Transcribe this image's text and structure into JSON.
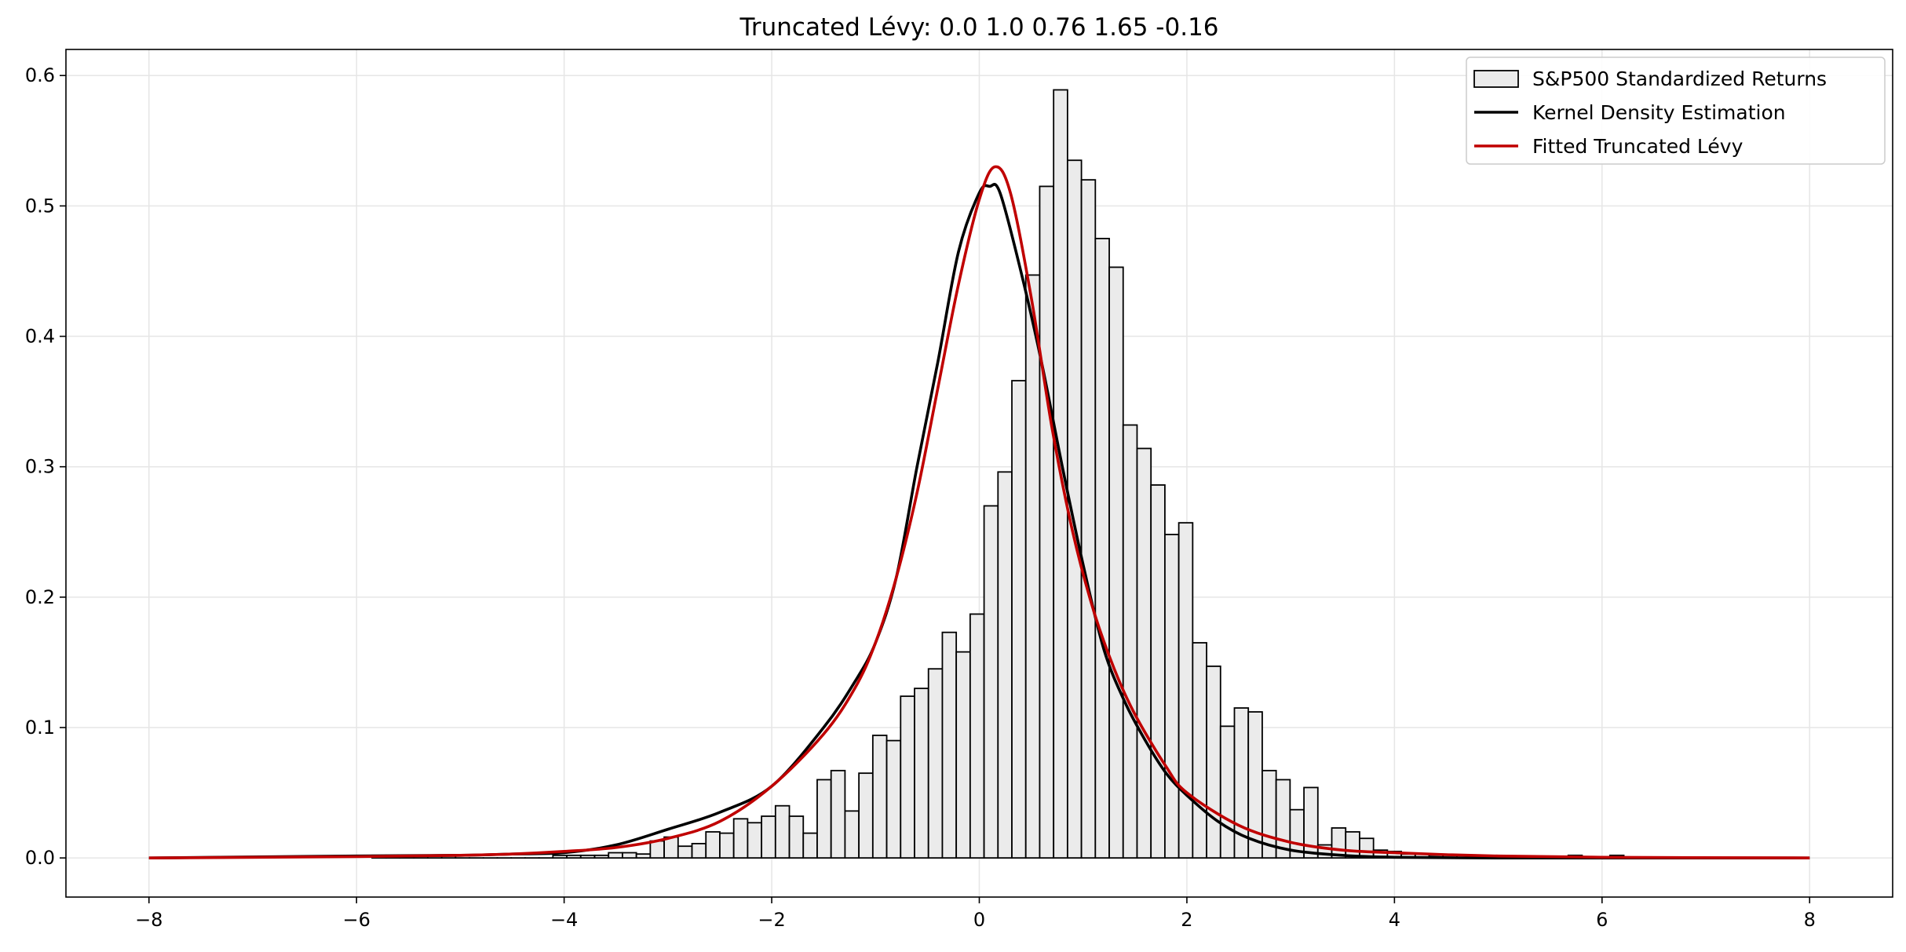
{
  "chart_data": {
    "type": "bar",
    "title": "Truncated Lévy: 0.0 1.0 0.76 1.65 -0.16",
    "xlabel": "",
    "ylabel": "",
    "xlim": [
      -8.8,
      8.8
    ],
    "ylim": [
      -0.03,
      0.62
    ],
    "grid": true,
    "legend_position": "top-right",
    "x_ticks": [
      -8,
      -6,
      -4,
      -2,
      0,
      2,
      4,
      6,
      8
    ],
    "x_tick_labels": [
      "−8",
      "−6",
      "−4",
      "−2",
      "0",
      "2",
      "4",
      "6",
      "8"
    ],
    "y_ticks": [
      0.0,
      0.1,
      0.2,
      0.3,
      0.4,
      0.5,
      0.6
    ],
    "y_tick_labels": [
      "0.0",
      "0.1",
      "0.2",
      "0.3",
      "0.4",
      "0.5",
      "0.6"
    ],
    "legend": [
      {
        "label": "S&P500 Standardized Returns",
        "kind": "patch",
        "color": "#ebebeb",
        "edge": "#000000"
      },
      {
        "label": "Kernel Density Estimation",
        "kind": "line",
        "color": "#000000"
      },
      {
        "label": "Fitted Truncated Lévy",
        "kind": "line",
        "color": "#c00000"
      }
    ],
    "histogram": {
      "name": "S&P500 Standardized Returns",
      "fill": "#ebebeb",
      "edge": "#000000",
      "bin_edges_start": -5.85,
      "bin_width": 0.134,
      "values": [
        0.002,
        0.002,
        0.002,
        0.002,
        0.0,
        0.002,
        0.0,
        0.0,
        0.0,
        0.0,
        0.0,
        0.0,
        0.0,
        0.002,
        0.002,
        0.002,
        0.002,
        0.004,
        0.004,
        0.003,
        0.013,
        0.016,
        0.009,
        0.011,
        0.02,
        0.019,
        0.03,
        0.027,
        0.032,
        0.04,
        0.032,
        0.019,
        0.06,
        0.067,
        0.036,
        0.065,
        0.094,
        0.09,
        0.124,
        0.13,
        0.145,
        0.173,
        0.158,
        0.187,
        0.27,
        0.296,
        0.366,
        0.447,
        0.515,
        0.589,
        0.535,
        0.52,
        0.475,
        0.453,
        0.332,
        0.314,
        0.286,
        0.248,
        0.257,
        0.165,
        0.147,
        0.101,
        0.115,
        0.112,
        0.067,
        0.06,
        0.037,
        0.054,
        0.01,
        0.023,
        0.02,
        0.015,
        0.006,
        0.005,
        0.003,
        0.003,
        0.002,
        0.002,
        0.0,
        0.0,
        0.0,
        0.0,
        0.0,
        0.0,
        0.0,
        0.0,
        0.002,
        0.0,
        0.0,
        0.002
      ]
    },
    "series": [
      {
        "name": "Kernel Density Estimation",
        "color": "#000000",
        "x": [
          -8,
          -6,
          -5,
          -4.5,
          -4,
          -3.5,
          -3.0,
          -2.5,
          -2.0,
          -1.5,
          -1.2,
          -1.0,
          -0.8,
          -0.6,
          -0.4,
          -0.2,
          0.0,
          0.1,
          0.2,
          0.4,
          0.6,
          0.8,
          1.0,
          1.2,
          1.4,
          1.6,
          1.8,
          2.0,
          2.3,
          2.6,
          3.0,
          3.5,
          4.0,
          5.0,
          6.0,
          8.0
        ],
        "y": [
          0.0,
          0.0015,
          0.002,
          0.003,
          0.004,
          0.01,
          0.022,
          0.035,
          0.055,
          0.1,
          0.135,
          0.165,
          0.215,
          0.3,
          0.38,
          0.465,
          0.51,
          0.515,
          0.51,
          0.45,
          0.38,
          0.3,
          0.225,
          0.16,
          0.12,
          0.09,
          0.065,
          0.048,
          0.028,
          0.015,
          0.006,
          0.002,
          0.0005,
          0.0,
          0.0,
          0.0
        ]
      },
      {
        "name": "Fitted Truncated Lévy",
        "color": "#c00000",
        "x": [
          -8,
          -6,
          -5,
          -4.5,
          -4,
          -3.5,
          -3.0,
          -2.5,
          -2.0,
          -1.5,
          -1.2,
          -1.0,
          -0.8,
          -0.6,
          -0.4,
          -0.2,
          0.0,
          0.15,
          0.3,
          0.5,
          0.7,
          0.9,
          1.1,
          1.3,
          1.5,
          1.8,
          2.0,
          2.5,
          3.0,
          3.5,
          4.0,
          4.5,
          5.0,
          6.0,
          8.0
        ],
        "y": [
          0.0,
          0.001,
          0.002,
          0.003,
          0.005,
          0.008,
          0.015,
          0.028,
          0.055,
          0.095,
          0.13,
          0.165,
          0.215,
          0.28,
          0.36,
          0.44,
          0.505,
          0.53,
          0.51,
          0.43,
          0.33,
          0.25,
          0.19,
          0.145,
          0.11,
          0.07,
          0.05,
          0.025,
          0.012,
          0.006,
          0.004,
          0.0025,
          0.0015,
          0.0005,
          0.0
        ]
      }
    ]
  }
}
